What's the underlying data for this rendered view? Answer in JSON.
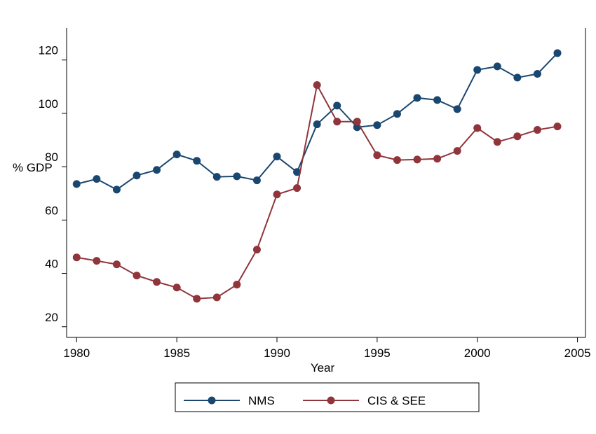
{
  "chart_data": {
    "type": "line",
    "x": [
      1980,
      1981,
      1982,
      1983,
      1984,
      1985,
      1986,
      1987,
      1988,
      1989,
      1990,
      1991,
      1992,
      1993,
      1994,
      1995,
      1996,
      1997,
      1998,
      1999,
      2000,
      2001,
      2002,
      2003,
      2004
    ],
    "series": [
      {
        "name": "NMS",
        "color": "#1a476f",
        "values": [
          73.5,
          75.4,
          71.4,
          76.7,
          78.8,
          84.6,
          82.2,
          76.2,
          76.4,
          74.9,
          83.8,
          78.0,
          95.9,
          102.9,
          94.8,
          95.6,
          99.8,
          105.8,
          105.0,
          101.6,
          116.3,
          117.6,
          113.4,
          114.8,
          122.6
        ]
      },
      {
        "name": "CIS & SEE",
        "color": "#90353b",
        "values": [
          46.0,
          44.7,
          43.4,
          39.2,
          36.8,
          34.7,
          30.5,
          31.0,
          35.8,
          48.9,
          69.6,
          72.0,
          110.6,
          96.9,
          96.9,
          84.3,
          82.5,
          82.7,
          83.0,
          85.9,
          94.5,
          89.3,
          91.4,
          93.8,
          95.1
        ]
      }
    ],
    "xlabel": "Year",
    "ylabel": "% GDP",
    "xlim": [
      1979.5,
      2005.4
    ],
    "xticks": [
      1980,
      1985,
      1990,
      1995,
      2000,
      2005
    ],
    "ylim": [
      16,
      132
    ],
    "yticks": [
      20,
      40,
      60,
      80,
      100,
      120
    ],
    "grid": false,
    "legend": "bottom"
  }
}
